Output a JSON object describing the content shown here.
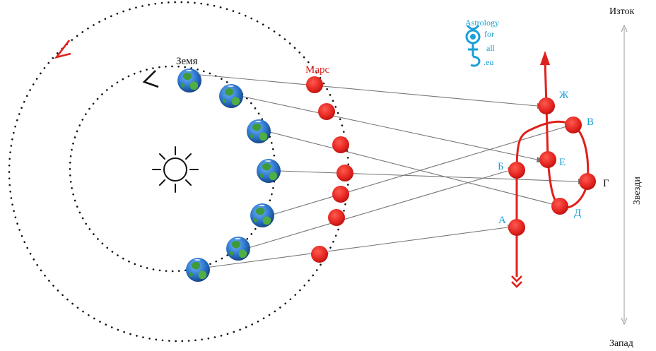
{
  "labels": {
    "earth": "Земя",
    "mars": "Марс",
    "east": "Изток",
    "west": "Запад",
    "stars": "Звезди"
  },
  "logo": {
    "line1": "Astrology",
    "line2": "for",
    "line3": "all",
    "line4": ".eu",
    "icon": "mercury-symbol-icon"
  },
  "points": [
    {
      "letter": "А",
      "color": "#1aa0d8"
    },
    {
      "letter": "Б",
      "color": "#1aa0d8"
    },
    {
      "letter": "В",
      "color": "#1aa0d8"
    },
    {
      "letter": "Г",
      "color": "#111111"
    },
    {
      "letter": "Д",
      "color": "#1aa0d8"
    },
    {
      "letter": "Е",
      "color": "#1aa0d8"
    },
    {
      "letter": "Ж",
      "color": "#1aa0d8"
    }
  ],
  "colors": {
    "mars": "#e0201c",
    "orbit": "#111111",
    "ray": "#777777",
    "label_blue": "#1aa0d8",
    "earth_ocean": "#2a72c8",
    "earth_land": "#3f9a3a"
  }
}
